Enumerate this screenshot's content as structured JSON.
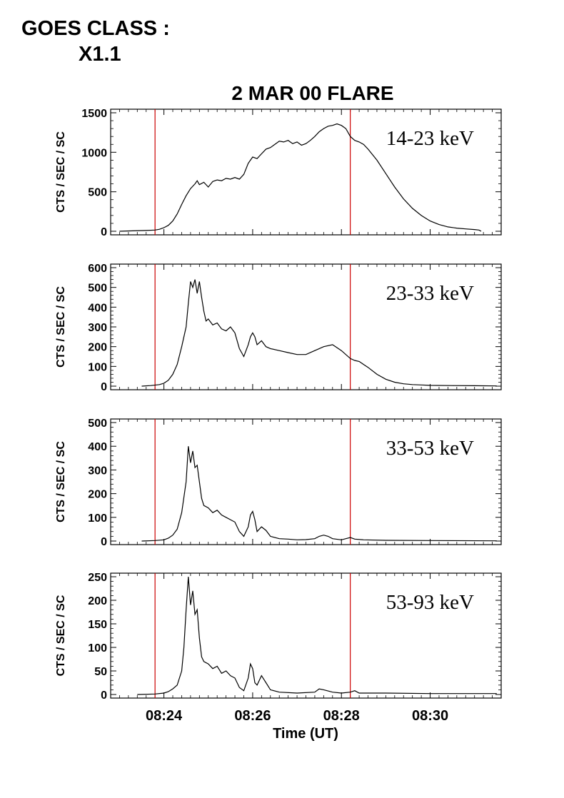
{
  "header": {
    "line1": "GOES CLASS :",
    "line2": "X1.1"
  },
  "chart_data": {
    "type": "line",
    "title": "2 MAR 00 FLARE",
    "xlabel": "Time (UT)",
    "x_ticks": [
      "08:24",
      "08:26",
      "08:28",
      "08:30"
    ],
    "x_tick_minutes": [
      24,
      26,
      28,
      30
    ],
    "xlim_minutes": [
      22.8,
      31.6
    ],
    "marker_lines_minutes": [
      23.8,
      28.2
    ],
    "marker_color": "#cc0000",
    "line_color": "#000000",
    "grid": false,
    "panels": [
      {
        "ylabel": "CTS / SEC / SC",
        "band": "14-23 keV",
        "ylim": [
          0,
          1500
        ],
        "yticks": [
          0,
          500,
          1000,
          1500
        ],
        "series": [
          {
            "x": 23.0,
            "y": 0
          },
          {
            "x": 23.3,
            "y": 5
          },
          {
            "x": 23.6,
            "y": 10
          },
          {
            "x": 23.8,
            "y": 15
          },
          {
            "x": 23.9,
            "y": 25
          },
          {
            "x": 24.0,
            "y": 45
          },
          {
            "x": 24.1,
            "y": 75
          },
          {
            "x": 24.2,
            "y": 130
          },
          {
            "x": 24.3,
            "y": 220
          },
          {
            "x": 24.4,
            "y": 340
          },
          {
            "x": 24.5,
            "y": 450
          },
          {
            "x": 24.6,
            "y": 540
          },
          {
            "x": 24.7,
            "y": 600
          },
          {
            "x": 24.75,
            "y": 640
          },
          {
            "x": 24.8,
            "y": 590
          },
          {
            "x": 24.9,
            "y": 620
          },
          {
            "x": 25.0,
            "y": 560
          },
          {
            "x": 25.1,
            "y": 630
          },
          {
            "x": 25.2,
            "y": 650
          },
          {
            "x": 25.3,
            "y": 640
          },
          {
            "x": 25.4,
            "y": 670
          },
          {
            "x": 25.5,
            "y": 660
          },
          {
            "x": 25.6,
            "y": 680
          },
          {
            "x": 25.7,
            "y": 660
          },
          {
            "x": 25.8,
            "y": 720
          },
          {
            "x": 25.9,
            "y": 860
          },
          {
            "x": 26.0,
            "y": 940
          },
          {
            "x": 26.1,
            "y": 920
          },
          {
            "x": 26.2,
            "y": 980
          },
          {
            "x": 26.3,
            "y": 1040
          },
          {
            "x": 26.4,
            "y": 1060
          },
          {
            "x": 26.5,
            "y": 1100
          },
          {
            "x": 26.6,
            "y": 1140
          },
          {
            "x": 26.7,
            "y": 1130
          },
          {
            "x": 26.8,
            "y": 1150
          },
          {
            "x": 26.9,
            "y": 1110
          },
          {
            "x": 27.0,
            "y": 1130
          },
          {
            "x": 27.1,
            "y": 1090
          },
          {
            "x": 27.2,
            "y": 1110
          },
          {
            "x": 27.3,
            "y": 1150
          },
          {
            "x": 27.4,
            "y": 1200
          },
          {
            "x": 27.5,
            "y": 1260
          },
          {
            "x": 27.6,
            "y": 1300
          },
          {
            "x": 27.7,
            "y": 1330
          },
          {
            "x": 27.8,
            "y": 1340
          },
          {
            "x": 27.9,
            "y": 1360
          },
          {
            "x": 28.0,
            "y": 1340
          },
          {
            "x": 28.1,
            "y": 1300
          },
          {
            "x": 28.2,
            "y": 1200
          },
          {
            "x": 28.3,
            "y": 1150
          },
          {
            "x": 28.4,
            "y": 1130
          },
          {
            "x": 28.5,
            "y": 1100
          },
          {
            "x": 28.6,
            "y": 1040
          },
          {
            "x": 28.8,
            "y": 900
          },
          {
            "x": 29.0,
            "y": 730
          },
          {
            "x": 29.2,
            "y": 560
          },
          {
            "x": 29.4,
            "y": 410
          },
          {
            "x": 29.6,
            "y": 290
          },
          {
            "x": 29.8,
            "y": 200
          },
          {
            "x": 30.0,
            "y": 130
          },
          {
            "x": 30.2,
            "y": 85
          },
          {
            "x": 30.4,
            "y": 55
          },
          {
            "x": 30.6,
            "y": 40
          },
          {
            "x": 30.8,
            "y": 30
          },
          {
            "x": 31.0,
            "y": 22
          },
          {
            "x": 31.1,
            "y": 15
          },
          {
            "x": 31.15,
            "y": 0
          }
        ]
      },
      {
        "ylabel": "CTS / SEC / SC",
        "band": "23-33 keV",
        "ylim": [
          0,
          600
        ],
        "yticks": [
          0,
          100,
          200,
          300,
          400,
          500,
          600
        ],
        "series": [
          {
            "x": 23.5,
            "y": 0
          },
          {
            "x": 23.7,
            "y": 3
          },
          {
            "x": 23.9,
            "y": 8
          },
          {
            "x": 24.0,
            "y": 15
          },
          {
            "x": 24.1,
            "y": 30
          },
          {
            "x": 24.2,
            "y": 60
          },
          {
            "x": 24.3,
            "y": 110
          },
          {
            "x": 24.4,
            "y": 200
          },
          {
            "x": 24.5,
            "y": 300
          },
          {
            "x": 24.55,
            "y": 420
          },
          {
            "x": 24.6,
            "y": 530
          },
          {
            "x": 24.65,
            "y": 500
          },
          {
            "x": 24.7,
            "y": 540
          },
          {
            "x": 24.75,
            "y": 470
          },
          {
            "x": 24.8,
            "y": 530
          },
          {
            "x": 24.85,
            "y": 450
          },
          {
            "x": 24.9,
            "y": 380
          },
          {
            "x": 24.95,
            "y": 330
          },
          {
            "x": 25.0,
            "y": 340
          },
          {
            "x": 25.1,
            "y": 310
          },
          {
            "x": 25.2,
            "y": 320
          },
          {
            "x": 25.3,
            "y": 290
          },
          {
            "x": 25.4,
            "y": 280
          },
          {
            "x": 25.5,
            "y": 300
          },
          {
            "x": 25.6,
            "y": 270
          },
          {
            "x": 25.7,
            "y": 190
          },
          {
            "x": 25.8,
            "y": 150
          },
          {
            "x": 25.9,
            "y": 210
          },
          {
            "x": 25.95,
            "y": 250
          },
          {
            "x": 26.0,
            "y": 270
          },
          {
            "x": 26.05,
            "y": 250
          },
          {
            "x": 26.1,
            "y": 210
          },
          {
            "x": 26.2,
            "y": 230
          },
          {
            "x": 26.3,
            "y": 200
          },
          {
            "x": 26.4,
            "y": 190
          },
          {
            "x": 26.6,
            "y": 180
          },
          {
            "x": 26.8,
            "y": 170
          },
          {
            "x": 27.0,
            "y": 160
          },
          {
            "x": 27.2,
            "y": 160
          },
          {
            "x": 27.4,
            "y": 180
          },
          {
            "x": 27.6,
            "y": 200
          },
          {
            "x": 27.8,
            "y": 210
          },
          {
            "x": 28.0,
            "y": 180
          },
          {
            "x": 28.2,
            "y": 140
          },
          {
            "x": 28.3,
            "y": 130
          },
          {
            "x": 28.4,
            "y": 125
          },
          {
            "x": 28.5,
            "y": 110
          },
          {
            "x": 28.6,
            "y": 95
          },
          {
            "x": 28.8,
            "y": 60
          },
          {
            "x": 29.0,
            "y": 35
          },
          {
            "x": 29.2,
            "y": 20
          },
          {
            "x": 29.4,
            "y": 12
          },
          {
            "x": 29.6,
            "y": 8
          },
          {
            "x": 29.8,
            "y": 6
          },
          {
            "x": 30.0,
            "y": 4
          },
          {
            "x": 30.5,
            "y": 3
          },
          {
            "x": 31.0,
            "y": 2
          },
          {
            "x": 31.5,
            "y": 1
          }
        ]
      },
      {
        "ylabel": "CTS / SEC / SC",
        "band": "33-53 keV",
        "ylim": [
          0,
          500
        ],
        "yticks": [
          0,
          100,
          200,
          300,
          400,
          500
        ],
        "series": [
          {
            "x": 23.5,
            "y": 0
          },
          {
            "x": 23.8,
            "y": 2
          },
          {
            "x": 24.0,
            "y": 5
          },
          {
            "x": 24.1,
            "y": 12
          },
          {
            "x": 24.2,
            "y": 25
          },
          {
            "x": 24.3,
            "y": 50
          },
          {
            "x": 24.4,
            "y": 120
          },
          {
            "x": 24.5,
            "y": 250
          },
          {
            "x": 24.55,
            "y": 400
          },
          {
            "x": 24.6,
            "y": 330
          },
          {
            "x": 24.65,
            "y": 380
          },
          {
            "x": 24.7,
            "y": 310
          },
          {
            "x": 24.75,
            "y": 320
          },
          {
            "x": 24.8,
            "y": 250
          },
          {
            "x": 24.85,
            "y": 180
          },
          {
            "x": 24.9,
            "y": 150
          },
          {
            "x": 25.0,
            "y": 140
          },
          {
            "x": 25.1,
            "y": 120
          },
          {
            "x": 25.2,
            "y": 130
          },
          {
            "x": 25.3,
            "y": 110
          },
          {
            "x": 25.4,
            "y": 100
          },
          {
            "x": 25.5,
            "y": 90
          },
          {
            "x": 25.6,
            "y": 80
          },
          {
            "x": 25.7,
            "y": 40
          },
          {
            "x": 25.8,
            "y": 20
          },
          {
            "x": 25.9,
            "y": 60
          },
          {
            "x": 25.95,
            "y": 110
          },
          {
            "x": 26.0,
            "y": 125
          },
          {
            "x": 26.05,
            "y": 90
          },
          {
            "x": 26.1,
            "y": 40
          },
          {
            "x": 26.2,
            "y": 60
          },
          {
            "x": 26.3,
            "y": 45
          },
          {
            "x": 26.4,
            "y": 20
          },
          {
            "x": 26.6,
            "y": 10
          },
          {
            "x": 26.8,
            "y": 8
          },
          {
            "x": 27.0,
            "y": 5
          },
          {
            "x": 27.2,
            "y": 6
          },
          {
            "x": 27.4,
            "y": 10
          },
          {
            "x": 27.5,
            "y": 20
          },
          {
            "x": 27.6,
            "y": 25
          },
          {
            "x": 27.7,
            "y": 20
          },
          {
            "x": 27.8,
            "y": 10
          },
          {
            "x": 28.0,
            "y": 5
          },
          {
            "x": 28.1,
            "y": 10
          },
          {
            "x": 28.2,
            "y": 15
          },
          {
            "x": 28.3,
            "y": 8
          },
          {
            "x": 28.5,
            "y": 5
          },
          {
            "x": 29.0,
            "y": 3
          },
          {
            "x": 30.0,
            "y": 2
          },
          {
            "x": 31.5,
            "y": 1
          }
        ]
      },
      {
        "ylabel": "CTS / SEC / SC",
        "band": "53-93 keV",
        "ylim": [
          0,
          250
        ],
        "yticks": [
          0,
          50,
          100,
          150,
          200,
          250
        ],
        "series": [
          {
            "x": 23.4,
            "y": 0
          },
          {
            "x": 23.8,
            "y": 1
          },
          {
            "x": 24.0,
            "y": 3
          },
          {
            "x": 24.1,
            "y": 6
          },
          {
            "x": 24.2,
            "y": 12
          },
          {
            "x": 24.3,
            "y": 20
          },
          {
            "x": 24.4,
            "y": 50
          },
          {
            "x": 24.45,
            "y": 100
          },
          {
            "x": 24.5,
            "y": 180
          },
          {
            "x": 24.55,
            "y": 250
          },
          {
            "x": 24.6,
            "y": 190
          },
          {
            "x": 24.65,
            "y": 220
          },
          {
            "x": 24.7,
            "y": 170
          },
          {
            "x": 24.75,
            "y": 180
          },
          {
            "x": 24.8,
            "y": 120
          },
          {
            "x": 24.85,
            "y": 80
          },
          {
            "x": 24.9,
            "y": 70
          },
          {
            "x": 25.0,
            "y": 65
          },
          {
            "x": 25.1,
            "y": 55
          },
          {
            "x": 25.2,
            "y": 60
          },
          {
            "x": 25.3,
            "y": 45
          },
          {
            "x": 25.4,
            "y": 50
          },
          {
            "x": 25.5,
            "y": 40
          },
          {
            "x": 25.6,
            "y": 35
          },
          {
            "x": 25.7,
            "y": 15
          },
          {
            "x": 25.8,
            "y": 8
          },
          {
            "x": 25.9,
            "y": 35
          },
          {
            "x": 25.95,
            "y": 65
          },
          {
            "x": 26.0,
            "y": 55
          },
          {
            "x": 26.05,
            "y": 25
          },
          {
            "x": 26.1,
            "y": 20
          },
          {
            "x": 26.2,
            "y": 40
          },
          {
            "x": 26.3,
            "y": 25
          },
          {
            "x": 26.4,
            "y": 10
          },
          {
            "x": 26.6,
            "y": 5
          },
          {
            "x": 27.0,
            "y": 3
          },
          {
            "x": 27.4,
            "y": 5
          },
          {
            "x": 27.5,
            "y": 12
          },
          {
            "x": 27.6,
            "y": 10
          },
          {
            "x": 27.8,
            "y": 5
          },
          {
            "x": 28.0,
            "y": 3
          },
          {
            "x": 28.2,
            "y": 5
          },
          {
            "x": 28.3,
            "y": 8
          },
          {
            "x": 28.4,
            "y": 3
          },
          {
            "x": 29.0,
            "y": 3
          },
          {
            "x": 30.0,
            "y": 2
          },
          {
            "x": 31.5,
            "y": 2
          }
        ]
      }
    ]
  }
}
